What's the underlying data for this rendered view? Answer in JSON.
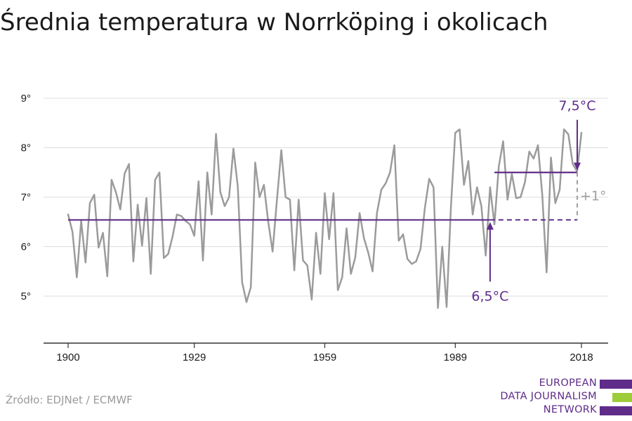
{
  "title": "Średnia temperatura w Norrköping i okolicach",
  "source": "Źródło: EDJNet / ECMWF",
  "logo": {
    "lines": [
      "EUROPEAN",
      "DATA JOURNALISM",
      "NETWORK"
    ],
    "colors": [
      "#5f2c8a",
      "#9ccc3a",
      "#5f2c8a"
    ]
  },
  "colors": {
    "series": "#9b9b9b",
    "accent": "#5f2c8a",
    "grid": "#dddddd",
    "diff": "#a0a0a0"
  },
  "chart_data": {
    "type": "line",
    "title": "Średnia temperatura w Norrköping i okolicach",
    "xlabel": "",
    "ylabel": "",
    "xlim": [
      1900,
      2018
    ],
    "ylim": [
      4,
      9.5
    ],
    "x_ticks": [
      1900,
      1929,
      1959,
      1989,
      2018
    ],
    "y_ticks": [
      5,
      6,
      7,
      8,
      9
    ],
    "y_tick_labels": [
      "5°",
      "6°",
      "7°",
      "8°",
      "9°"
    ],
    "grid": true,
    "series": [
      {
        "x_start": 1900,
        "values": [
          6.65,
          6.3,
          5.38,
          6.52,
          5.68,
          6.88,
          7.05,
          5.98,
          6.28,
          5.4,
          7.35,
          7.1,
          6.75,
          7.48,
          7.67,
          5.7,
          6.85,
          6.02,
          6.98,
          5.45,
          7.35,
          7.5,
          5.77,
          5.85,
          6.2,
          6.65,
          6.62,
          6.52,
          6.45,
          6.22,
          7.32,
          5.72,
          7.5,
          6.65,
          8.28,
          7.1,
          6.82,
          7.0,
          7.98,
          7.22,
          5.28,
          4.88,
          5.18,
          7.7,
          7.0,
          7.25,
          6.5,
          5.9,
          6.95,
          7.95,
          7.0,
          6.95,
          5.52,
          6.95,
          5.72,
          5.62,
          4.93,
          6.28,
          5.45,
          7.08,
          6.15,
          7.08,
          5.12,
          5.38,
          6.37,
          5.45,
          5.78,
          6.68,
          6.17,
          5.88,
          5.5,
          6.68,
          7.15,
          7.28,
          7.5,
          8.05,
          6.12,
          6.25,
          5.75,
          5.65,
          5.7,
          5.95,
          6.78,
          7.37,
          7.2,
          4.76,
          6.0,
          4.78,
          6.82,
          8.3,
          8.37,
          7.25,
          7.73,
          6.65,
          7.2,
          6.82,
          5.82,
          7.2,
          6.45,
          7.62,
          8.13,
          6.95,
          7.47,
          6.98,
          7.0,
          7.3,
          7.92,
          7.78,
          8.05,
          7.05,
          5.48,
          7.8,
          6.88,
          7.15,
          8.37,
          8.27,
          7.67,
          7.52,
          8.3
        ]
      }
    ],
    "annotations": [
      {
        "label": "6,5°C",
        "type": "mean-line",
        "value": 6.54,
        "x_range": [
          1900,
          2018
        ]
      },
      {
        "label": "7,5°C",
        "type": "mean-line",
        "value": 7.5,
        "x_range": [
          1998,
          2018
        ]
      },
      {
        "label": "+1°",
        "type": "difference"
      }
    ]
  }
}
